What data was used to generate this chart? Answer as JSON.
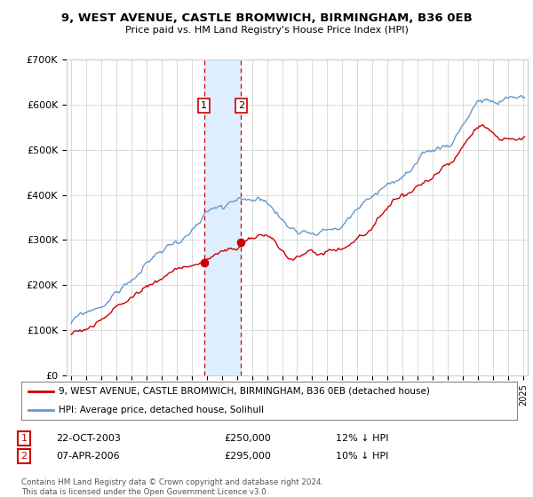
{
  "title": "9, WEST AVENUE, CASTLE BROMWICH, BIRMINGHAM, B36 0EB",
  "subtitle": "Price paid vs. HM Land Registry's House Price Index (HPI)",
  "ylim": [
    0,
    700000
  ],
  "yticks": [
    0,
    100000,
    200000,
    300000,
    400000,
    500000,
    600000,
    700000
  ],
  "ytick_labels": [
    "£0",
    "£100K",
    "£200K",
    "£300K",
    "£400K",
    "£500K",
    "£600K",
    "£700K"
  ],
  "sale1": {
    "date_num": 2003.81,
    "price": 250000,
    "label": "1"
  },
  "sale2": {
    "date_num": 2006.27,
    "price": 295000,
    "label": "2"
  },
  "shade_x1": 2003.81,
  "shade_x2": 2006.27,
  "legend_line1": "9, WEST AVENUE, CASTLE BROMWICH, BIRMINGHAM, B36 0EB (detached house)",
  "legend_line2": "HPI: Average price, detached house, Solihull",
  "table_row1": [
    "1",
    "22-OCT-2003",
    "£250,000",
    "12% ↓ HPI"
  ],
  "table_row2": [
    "2",
    "07-APR-2006",
    "£295,000",
    "10% ↓ HPI"
  ],
  "footer": "Contains HM Land Registry data © Crown copyright and database right 2024.\nThis data is licensed under the Open Government Licence v3.0.",
  "hpi_color": "#6699cc",
  "price_color": "#cc0000",
  "shade_color": "#ddeeff",
  "grid_color": "#cccccc",
  "bg_color": "#ffffff",
  "xlim_left": 1994.7,
  "xlim_right": 2025.3
}
